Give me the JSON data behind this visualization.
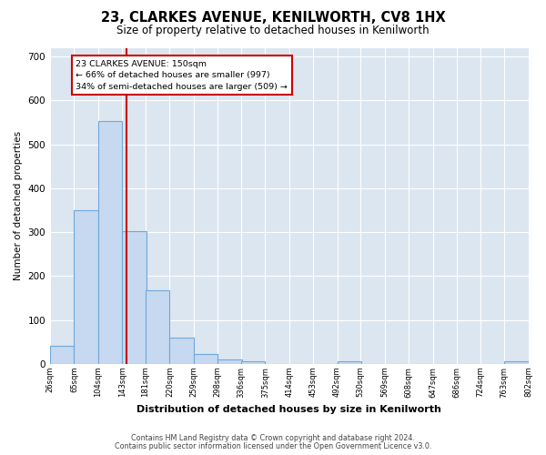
{
  "title": "23, CLARKES AVENUE, KENILWORTH, CV8 1HX",
  "subtitle": "Size of property relative to detached houses in Kenilworth",
  "xlabel": "Distribution of detached houses by size in Kenilworth",
  "ylabel": "Number of detached properties",
  "bar_left_edges": [
    26,
    65,
    104,
    143,
    181,
    220,
    259,
    298,
    336,
    375,
    414,
    453,
    492,
    530,
    569,
    608,
    647,
    686,
    724,
    763
  ],
  "bar_labels": [
    "26sqm",
    "65sqm",
    "104sqm",
    "143sqm",
    "181sqm",
    "220sqm",
    "259sqm",
    "298sqm",
    "336sqm",
    "375sqm",
    "414sqm",
    "453sqm",
    "492sqm",
    "530sqm",
    "569sqm",
    "608sqm",
    "647sqm",
    "686sqm",
    "724sqm",
    "763sqm",
    "802sqm"
  ],
  "bar_heights": [
    42,
    350,
    553,
    303,
    168,
    60,
    22,
    11,
    7,
    0,
    0,
    0,
    5,
    0,
    0,
    0,
    0,
    0,
    0,
    7
  ],
  "bar_color": "#c6d9f0",
  "bar_edge_color": "#6fa8dc",
  "ylim": [
    0,
    720
  ],
  "yticks": [
    0,
    100,
    200,
    300,
    400,
    500,
    600,
    700
  ],
  "property_line_x": 150,
  "property_line_color": "#cc0000",
  "annotation_text": "23 CLARKES AVENUE: 150sqm\n← 66% of detached houses are smaller (997)\n34% of semi-detached houses are larger (509) →",
  "annotation_box_color": "#ffffff",
  "annotation_box_edge": "#cc0000",
  "footer_line1": "Contains HM Land Registry data © Crown copyright and database right 2024.",
  "footer_line2": "Contains public sector information licensed under the Open Government Licence v3.0.",
  "background_color": "#ffffff",
  "plot_bg_color": "#dce6f1",
  "grid_color": "#ffffff",
  "bin_width": 39
}
